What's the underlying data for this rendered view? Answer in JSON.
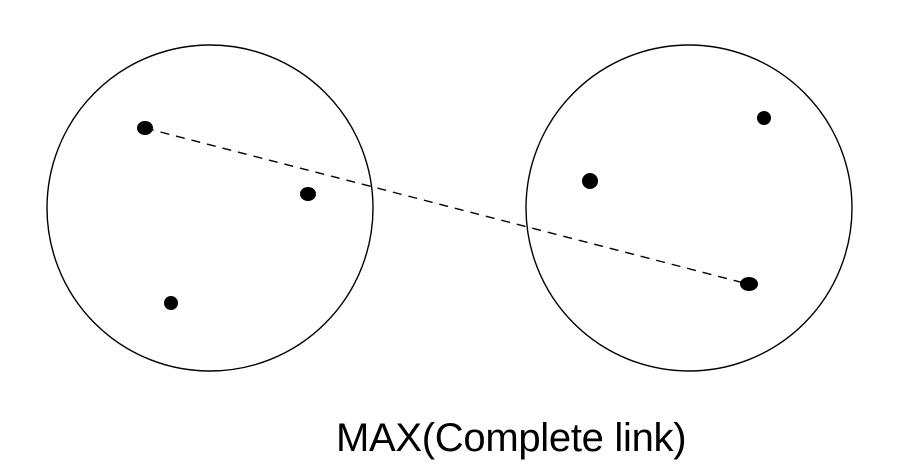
{
  "caption": "MAX(Complete link)",
  "colors": {
    "stroke": "#000000",
    "background": "#ffffff"
  },
  "line_style": "dashed"
}
